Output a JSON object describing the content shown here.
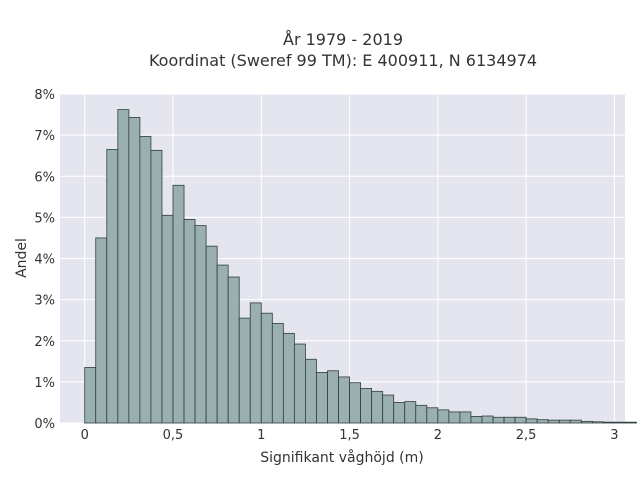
{
  "chart_data": {
    "type": "bar",
    "title": "År 1979 - 2019",
    "subtitle": "Koordinat (Sweref 99 TM): E 400911, N 6134974",
    "xlabel": "Signifikant våghöjd (m)",
    "ylabel": "Andel",
    "xlim": [
      -0.14,
      3.06
    ],
    "ylim": [
      0,
      8
    ],
    "x_ticks": [
      0,
      0.5,
      1,
      1.5,
      2,
      2.5,
      3
    ],
    "x_tick_labels": [
      "0",
      "0,5",
      "1",
      "1,5",
      "2",
      "2,5",
      "3"
    ],
    "y_ticks": [
      0,
      1,
      2,
      3,
      4,
      5,
      6,
      7,
      8
    ],
    "y_tick_labels": [
      "0%",
      "1%",
      "2%",
      "3%",
      "4%",
      "5%",
      "6%",
      "7%",
      "8%"
    ],
    "bin_width": 0.0625,
    "bin_start": 0.0,
    "values": [
      1.35,
      4.5,
      6.65,
      7.62,
      7.43,
      6.97,
      6.63,
      5.05,
      5.78,
      4.95,
      4.8,
      4.3,
      3.84,
      3.55,
      2.55,
      2.92,
      2.67,
      2.42,
      2.18,
      1.92,
      1.55,
      1.23,
      1.27,
      1.12,
      0.98,
      0.84,
      0.77,
      0.68,
      0.5,
      0.52,
      0.43,
      0.37,
      0.32,
      0.27,
      0.27,
      0.16,
      0.17,
      0.14,
      0.14,
      0.14,
      0.1,
      0.08,
      0.07,
      0.07,
      0.07,
      0.04,
      0.03,
      0.02,
      0.02,
      0.02
    ],
    "grid": true,
    "colors": {
      "bar_fill": "#9ab0b0",
      "bar_stroke": "#2e3d3d",
      "plot_bg": "#e5e5f0",
      "grid": "#ffffff"
    }
  }
}
